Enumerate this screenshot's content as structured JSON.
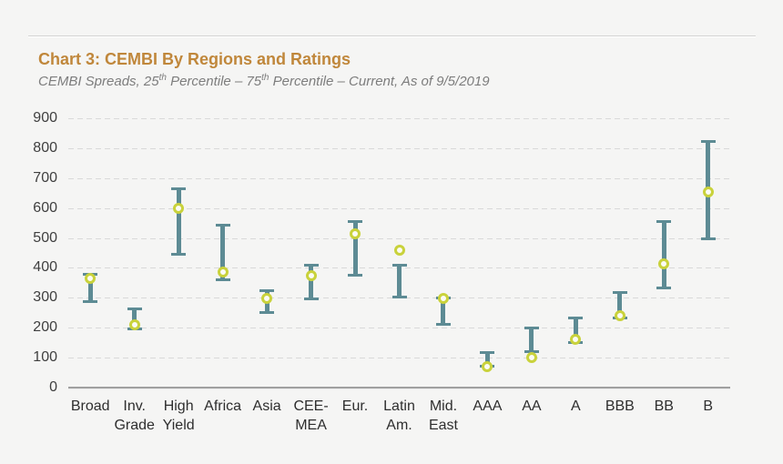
{
  "page": {
    "background": "#f5f5f4"
  },
  "header": {
    "title": "Chart 3: CEMBI By Regions and Ratings",
    "title_color": "#c0873b",
    "subtitle_parts": [
      {
        "text": "CEMBI Spreads, 25"
      },
      {
        "text": "th",
        "sup": true
      },
      {
        "text": " Percentile – 75"
      },
      {
        "text": "th",
        "sup": true
      },
      {
        "text": " Percentile – Current, As of 9/5/2019"
      }
    ]
  },
  "chart_data": {
    "type": "range-dot",
    "title": "Chart 3: CEMBI By Regions and Ratings",
    "subtitle": "CEMBI Spreads, 25th Percentile – 75th Percentile – Current, As of 9/5/2019",
    "as_of_date": "9/5/2019",
    "ylim": [
      0,
      900
    ],
    "ytick_step": 100,
    "ytick_labels": [
      "0",
      "100",
      "200",
      "300",
      "400",
      "500",
      "600",
      "700",
      "800",
      "900"
    ],
    "grid": "dashed-horizontal",
    "legend": "none",
    "categories": [
      "Broad",
      "Inv. Grade",
      "High Yield",
      "Africa",
      "Asia",
      "CEE-MEA",
      "Eur.",
      "Latin Am.",
      "Mid. East",
      "AAA",
      "AA",
      "A",
      "BBB",
      "BB",
      "B"
    ],
    "category_label_lines": [
      [
        "Broad"
      ],
      [
        "Inv.",
        "Grade"
      ],
      [
        "High",
        "Yield"
      ],
      [
        "Africa"
      ],
      [
        "Asia"
      ],
      [
        "CEE-",
        "MEA"
      ],
      [
        "Eur."
      ],
      [
        "Latin",
        "Am."
      ],
      [
        "Mid.",
        "East"
      ],
      [
        "AAA"
      ],
      [
        "AA"
      ],
      [
        "A"
      ],
      [
        "BBB"
      ],
      [
        "BB"
      ],
      [
        "B"
      ]
    ],
    "series": [
      {
        "name": "25th Percentile",
        "role": "range_low",
        "values": [
          285,
          195,
          445,
          360,
          250,
          295,
          375,
          300,
          210,
          70,
          120,
          150,
          230,
          330,
          495
        ]
      },
      {
        "name": "75th Percentile",
        "role": "range_high",
        "values": [
          380,
          265,
          665,
          545,
          325,
          410,
          555,
          410,
          300,
          120,
          200,
          235,
          320,
          555,
          825
        ]
      },
      {
        "name": "Current",
        "role": "marker",
        "values": [
          365,
          210,
          600,
          385,
          298,
          375,
          515,
          460,
          298,
          70,
          100,
          160,
          240,
          415,
          655
        ]
      }
    ],
    "colors": {
      "range_bar": "#5d8b94",
      "current_marker_ring": "#c9d23b",
      "current_marker_fill": "#fbfbf5",
      "gridline": "#d9d9d9",
      "baseline": "#a0a0a0",
      "axis_text": "#3f3f3f"
    }
  }
}
